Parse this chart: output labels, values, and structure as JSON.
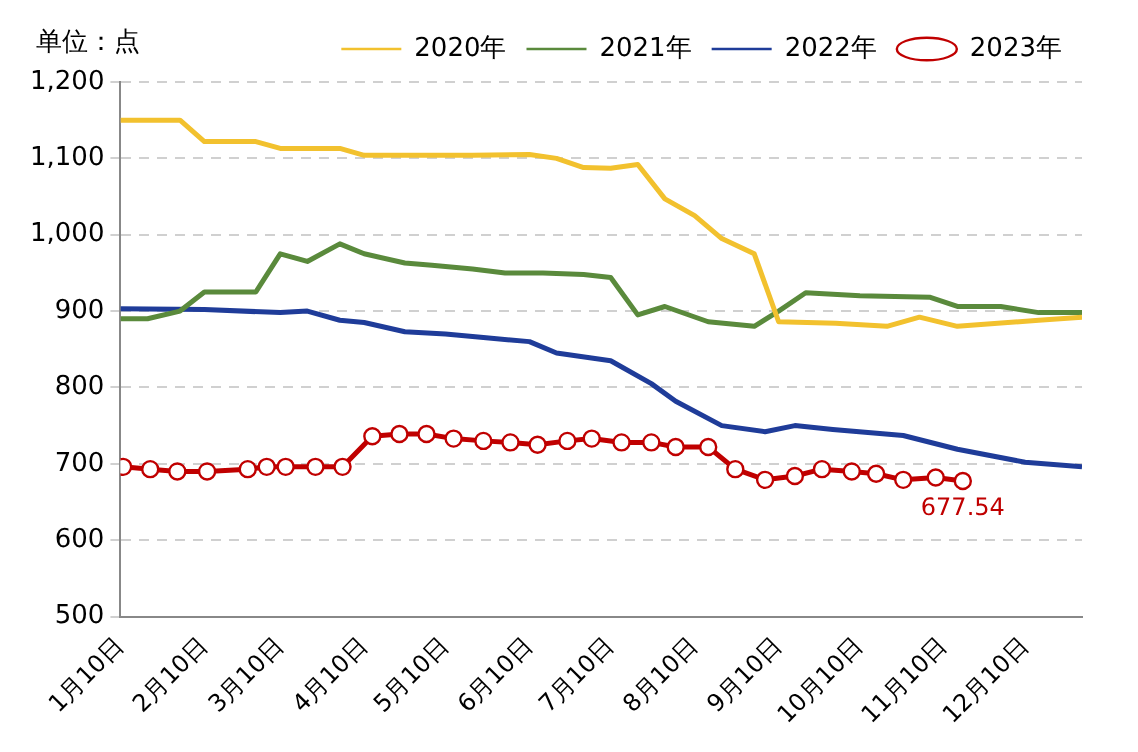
{
  "chart_data": {
    "type": "line",
    "ylabel": "单位：点",
    "legend": "top right",
    "grid": "y",
    "line_style": "solid",
    "xlim": [
      "--01-10",
      "--12-31"
    ],
    "xticks": [
      {
        "value": "--01-10",
        "label": "1月10日"
      },
      {
        "value": "--02-10",
        "label": "2月10日"
      },
      {
        "value": "--03-10",
        "label": "3月10日"
      },
      {
        "value": "--04-10",
        "label": "4月10日"
      },
      {
        "value": "--05-10",
        "label": "5月10日"
      },
      {
        "value": "--06-10",
        "label": "6月10日"
      },
      {
        "value": "--07-10",
        "label": "7月10日"
      },
      {
        "value": "--08-10",
        "label": "8月10日"
      },
      {
        "value": "--09-10",
        "label": "9月10日"
      },
      {
        "value": "--10-10",
        "label": "10月10日"
      },
      {
        "value": "--11-10",
        "label": "11月10日"
      },
      {
        "value": "--12-10",
        "label": "12月10日"
      }
    ],
    "ylim": [
      500,
      1200
    ],
    "yticks": [
      500,
      600,
      700,
      800,
      900,
      {
        "value": 1000,
        "label": "1,000"
      },
      {
        "value": 1100,
        "label": "1,100"
      },
      {
        "value": 1200,
        "label": "1,200"
      }
    ],
    "series": [
      {
        "name": "2020年",
        "color": "#f2c12e",
        "marker": "none",
        "x": [
          "--01-10",
          "--02-01",
          "--02-10",
          "--03-01",
          "--03-10",
          "--04-01",
          "--04-10",
          "--05-20",
          "--06-10",
          "--06-20",
          "--06-30",
          "--07-10",
          "--07-20",
          "--07-30",
          "--08-10",
          "--08-20",
          "--09-01",
          "--09-10",
          "--10-01",
          "--10-20",
          "--11-01",
          "--11-15",
          "--12-15",
          "--12-31"
        ],
        "values": [
          1150,
          1150,
          1122,
          1122,
          1113,
          1113,
          1104,
          1104,
          1105,
          1100,
          1088,
          1087,
          1092,
          1047,
          1025,
          995,
          975,
          886,
          884,
          880,
          892,
          880,
          888,
          892
        ]
      },
      {
        "name": "2021年",
        "color": "#5a8a3c",
        "marker": "none",
        "x": [
          "--01-10",
          "--01-20",
          "--02-01",
          "--02-10",
          "--03-01",
          "--03-10",
          "--03-20",
          "--04-01",
          "--04-10",
          "--04-25",
          "--05-05",
          "--05-20",
          "--06-01",
          "--06-15",
          "--06-30",
          "--07-10",
          "--07-20",
          "--07-30",
          "--08-15",
          "--09-01",
          "--09-10",
          "--09-20",
          "--10-10",
          "--11-05",
          "--11-15",
          "--12-01",
          "--12-15",
          "--12-31"
        ],
        "values": [
          890,
          890,
          900,
          925,
          925,
          975,
          965,
          988,
          975,
          963,
          960,
          955,
          950,
          950,
          948,
          944,
          895,
          906,
          886,
          880,
          900,
          924,
          920,
          918,
          906,
          906,
          898,
          898
        ]
      },
      {
        "name": "2022年",
        "color": "#1f3c99",
        "marker": "none",
        "x": [
          "--01-10",
          "--02-10",
          "--03-10",
          "--03-20",
          "--04-01",
          "--04-10",
          "--04-25",
          "--05-10",
          "--05-25",
          "--06-10",
          "--06-20",
          "--07-10",
          "--07-25",
          "--08-03",
          "--08-20",
          "--09-05",
          "--09-16",
          "--09-30",
          "--10-26",
          "--11-15",
          "--12-10",
          "--12-31"
        ],
        "values": [
          903,
          902,
          898,
          900,
          888,
          885,
          873,
          870,
          865,
          860,
          845,
          835,
          805,
          782,
          750,
          742,
          750,
          745,
          737,
          719,
          702,
          696
        ]
      },
      {
        "name": "2023年",
        "color": "#c00000",
        "marker": "circle",
        "x": [
          "--01-11",
          "--01-21",
          "--01-31",
          "--02-11",
          "--02-26",
          "--03-05",
          "--03-12",
          "--03-23",
          "--04-02",
          "--04-13",
          "--04-23",
          "--05-03",
          "--05-13",
          "--05-24",
          "--06-03",
          "--06-13",
          "--06-24",
          "--07-03",
          "--07-14",
          "--07-25",
          "--08-03",
          "--08-15",
          "--08-25",
          "--09-05",
          "--09-16",
          "--09-26",
          "--10-07",
          "--10-16",
          "--10-26",
          "--11-07",
          "--11-17"
        ],
        "values": [
          696,
          693,
          690,
          690,
          693,
          696,
          696,
          696,
          696,
          736,
          739,
          739,
          733,
          730,
          728,
          725,
          730,
          733,
          728,
          728,
          722,
          722,
          693,
          679,
          684,
          693,
          690,
          687,
          679,
          682,
          677.54
        ]
      }
    ],
    "annotations": [
      {
        "text": "677.54",
        "x": "--11-17",
        "y": 677.54
      }
    ]
  }
}
